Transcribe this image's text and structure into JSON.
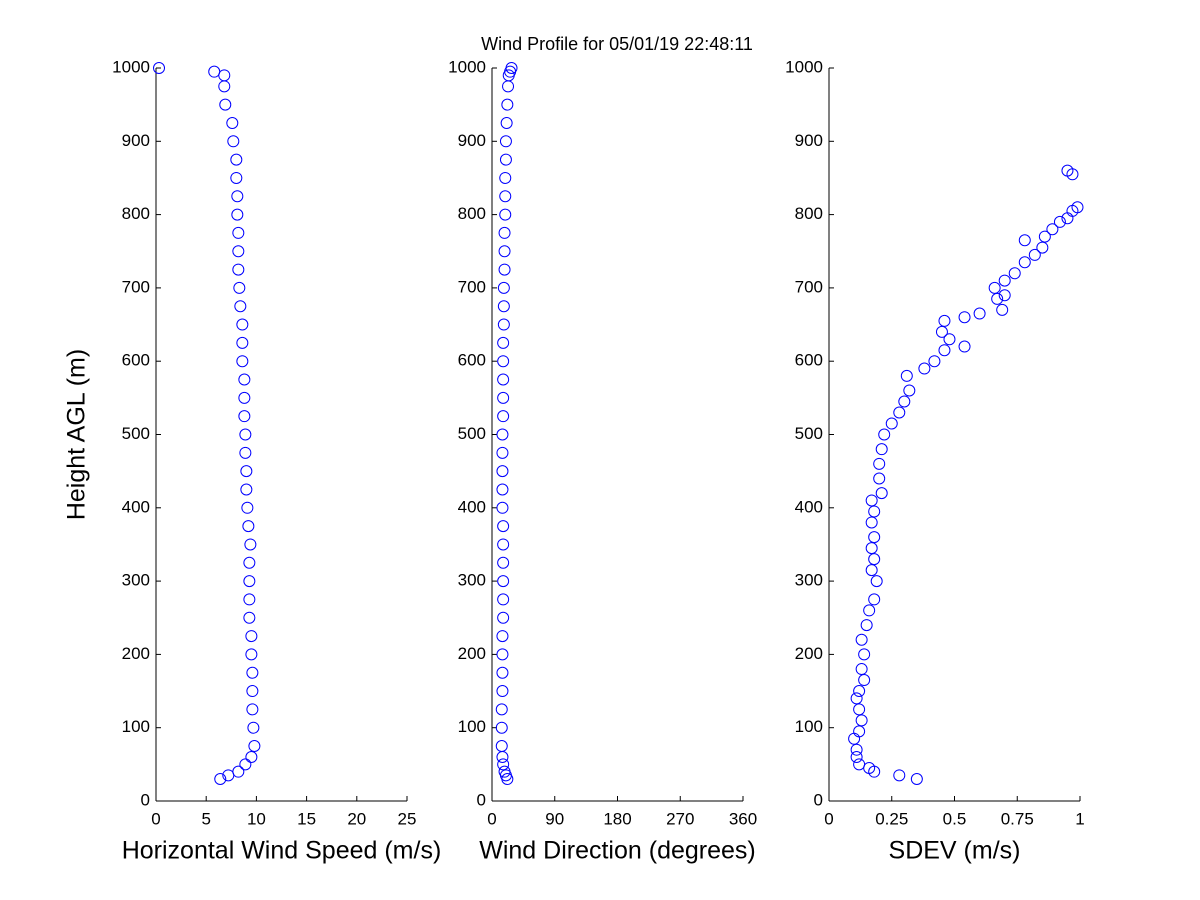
{
  "title": "Wind Profile for  05/01/19 22:48:11",
  "chart_data": [
    {
      "type": "scatter",
      "xlabel": "Horizontal Wind Speed (m/s)",
      "ylabel": "Height AGL (m)",
      "color": "#0000ff",
      "xlim": [
        0,
        25
      ],
      "xticks": [
        0,
        5,
        10,
        15,
        20,
        25
      ],
      "ylim": [
        0,
        1000
      ],
      "yticks": [
        0,
        100,
        200,
        300,
        400,
        500,
        600,
        700,
        800,
        900,
        1000
      ],
      "x": [
        6.4,
        7.2,
        8.2,
        8.9,
        9.5,
        9.8,
        9.7,
        9.6,
        9.6,
        9.6,
        9.5,
        9.5,
        9.3,
        9.3,
        9.3,
        9.3,
        9.4,
        9.2,
        9.1,
        9.0,
        9.0,
        8.9,
        8.9,
        8.8,
        8.8,
        8.8,
        8.6,
        8.6,
        8.6,
        8.4,
        8.3,
        8.2,
        8.2,
        8.2,
        8.1,
        8.1,
        8.0,
        8.0,
        7.7,
        7.6,
        6.9,
        6.8,
        6.8,
        5.8,
        0.3
      ],
      "values": [
        30,
        35,
        40,
        50,
        60,
        75,
        100,
        125,
        150,
        175,
        200,
        225,
        250,
        275,
        300,
        325,
        350,
        375,
        400,
        425,
        450,
        475,
        500,
        525,
        550,
        575,
        600,
        625,
        650,
        675,
        700,
        725,
        750,
        775,
        800,
        825,
        850,
        875,
        900,
        925,
        950,
        975,
        990,
        995,
        1000
      ]
    },
    {
      "type": "scatter",
      "xlabel": "Wind Direction (degrees)",
      "color": "#0000ff",
      "xlim": [
        0,
        360
      ],
      "xticks": [
        0,
        90,
        180,
        270,
        360
      ],
      "ylim": [
        0,
        1000
      ],
      "yticks": [
        0,
        100,
        200,
        300,
        400,
        500,
        600,
        700,
        800,
        900,
        1000
      ],
      "x": [
        22,
        20,
        18,
        16,
        15,
        14,
        14,
        14,
        15,
        15,
        15,
        15,
        16,
        16,
        16,
        16,
        16,
        16,
        15,
        15,
        15,
        15,
        15,
        16,
        16,
        16,
        16,
        16,
        17,
        17,
        17,
        18,
        18,
        18,
        19,
        19,
        19,
        20,
        20,
        21,
        22,
        23,
        24,
        26,
        28
      ],
      "values": [
        30,
        35,
        40,
        50,
        60,
        75,
        100,
        125,
        150,
        175,
        200,
        225,
        250,
        275,
        300,
        325,
        350,
        375,
        400,
        425,
        450,
        475,
        500,
        525,
        550,
        575,
        600,
        625,
        650,
        675,
        700,
        725,
        750,
        775,
        800,
        825,
        850,
        875,
        900,
        925,
        950,
        975,
        990,
        995,
        1000
      ]
    },
    {
      "type": "scatter",
      "xlabel": "SDEV  (m/s)",
      "color": "#0000ff",
      "xlim": [
        0,
        1
      ],
      "xticks": [
        0,
        0.25,
        0.5,
        0.75,
        1
      ],
      "ylim": [
        0,
        1000
      ],
      "yticks": [
        0,
        100,
        200,
        300,
        400,
        500,
        600,
        700,
        800,
        900,
        1000
      ],
      "x": [
        0.35,
        0.28,
        0.18,
        0.16,
        0.12,
        0.11,
        0.11,
        0.1,
        0.12,
        0.13,
        0.12,
        0.11,
        0.12,
        0.14,
        0.13,
        0.14,
        0.13,
        0.15,
        0.16,
        0.18,
        0.19,
        0.17,
        0.18,
        0.17,
        0.18,
        0.17,
        0.18,
        0.17,
        0.21,
        0.2,
        0.2,
        0.21,
        0.22,
        0.25,
        0.28,
        0.3,
        0.32,
        0.31,
        0.38,
        0.42,
        0.46,
        0.54,
        0.48,
        0.45,
        0.46,
        0.54,
        0.6,
        0.69,
        0.67,
        0.7,
        0.66,
        0.7,
        0.74,
        0.78,
        0.82,
        0.85,
        0.78,
        0.86,
        0.89,
        0.92,
        0.95,
        0.97,
        0.99,
        0.97,
        0.95
      ],
      "values": [
        30,
        35,
        40,
        45,
        50,
        60,
        70,
        85,
        95,
        110,
        125,
        140,
        150,
        165,
        180,
        200,
        220,
        240,
        260,
        275,
        300,
        315,
        330,
        345,
        360,
        380,
        395,
        410,
        420,
        440,
        460,
        480,
        500,
        515,
        530,
        545,
        560,
        580,
        590,
        600,
        615,
        620,
        630,
        640,
        655,
        660,
        665,
        670,
        685,
        690,
        700,
        710,
        720,
        735,
        745,
        755,
        765,
        770,
        780,
        790,
        795,
        805,
        810,
        855,
        860
      ]
    }
  ]
}
